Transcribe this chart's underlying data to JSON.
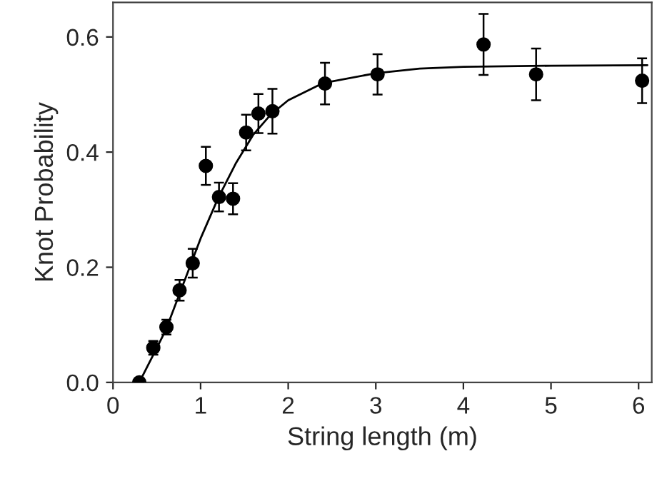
{
  "chart_data": {
    "type": "scatter",
    "xlabel": "String length (m)",
    "ylabel": "Knot Probability",
    "xlim": [
      0,
      6.15
    ],
    "ylim": [
      0,
      0.66
    ],
    "xticks": [
      0,
      1,
      2,
      3,
      4,
      5,
      6
    ],
    "yticks": [
      {
        "value": 0,
        "label": "0.0"
      },
      {
        "value": 0.2,
        "label": "0.2"
      },
      {
        "value": 0.4,
        "label": "0.4"
      },
      {
        "value": 0.6,
        "label": "0.6"
      }
    ],
    "grid": false,
    "marker": "circle",
    "series": [
      {
        "color": "#000000",
        "x": [
          0.3,
          0.46,
          0.61,
          0.76,
          0.91,
          1.06,
          1.21,
          1.37,
          1.52,
          1.66,
          1.82,
          2.42,
          3.02,
          4.23,
          4.83,
          6.04
        ],
        "values": [
          0.0,
          0.06,
          0.096,
          0.16,
          0.207,
          0.376,
          0.322,
          0.319,
          0.434,
          0.467,
          0.471,
          0.519,
          0.535,
          0.587,
          0.535,
          0.524
        ],
        "errors": [
          null,
          0.012,
          0.013,
          0.018,
          0.025,
          0.033,
          0.025,
          0.027,
          0.031,
          0.034,
          0.039,
          0.036,
          0.035,
          0.053,
          0.045,
          0.039
        ]
      },
      {
        "type": "line",
        "color": "#000000",
        "line_style": "solid",
        "marker": "none",
        "x": [
          0.3,
          0.45,
          0.6,
          0.8,
          1.0,
          1.2,
          1.4,
          1.6,
          1.8,
          2.0,
          2.4,
          3.0,
          3.5,
          4.0,
          5.0,
          6.1
        ],
        "values": [
          0.0,
          0.045,
          0.09,
          0.17,
          0.25,
          0.32,
          0.38,
          0.43,
          0.465,
          0.49,
          0.52,
          0.537,
          0.545,
          0.548,
          0.55,
          0.551
        ]
      }
    ]
  }
}
